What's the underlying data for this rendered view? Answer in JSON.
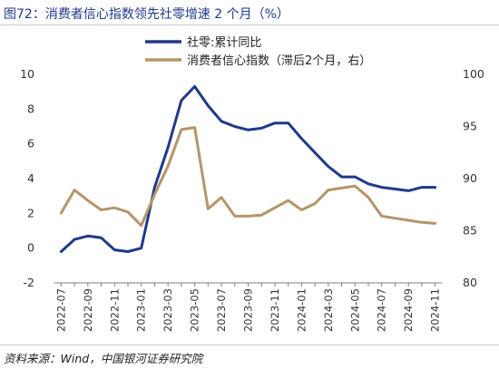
{
  "header": {
    "title": "图72：消费者信心指数领先社零增速 2 个月（%）"
  },
  "footer": {
    "source": "资料来源：Wind，中国银河证券研究院"
  },
  "chart_data": {
    "type": "line",
    "x": [
      "2022-07",
      "2022-08",
      "2022-09",
      "2022-10",
      "2022-11",
      "2022-12",
      "2023-01",
      "2023-02",
      "2023-03",
      "2023-04",
      "2023-05",
      "2023-06",
      "2023-07",
      "2023-08",
      "2023-09",
      "2023-10",
      "2023-11",
      "2023-12",
      "2024-01",
      "2024-02",
      "2024-03",
      "2024-04",
      "2024-05",
      "2024-06",
      "2024-07",
      "2024-08",
      "2024-09",
      "2024-10",
      "2024-11"
    ],
    "xtick_labels": [
      "2022-07",
      "2022-09",
      "2022-11",
      "2023-01",
      "2023-03",
      "2023-05",
      "2023-07",
      "2023-09",
      "2023-11",
      "2024-01",
      "2024-03",
      "2024-05",
      "2024-07",
      "2024-09",
      "2024-11"
    ],
    "y_left": {
      "min": -2,
      "max": 10,
      "ticks": [
        -2,
        0,
        2,
        4,
        6,
        8,
        10
      ]
    },
    "y_right": {
      "min": 80,
      "max": 100,
      "ticks": [
        80,
        85,
        90,
        95,
        100
      ]
    },
    "legend": {
      "placement": "top-center"
    },
    "grid": false,
    "series": [
      {
        "name": "社零:累计同比",
        "axis": "left",
        "color": "#1f3a8a",
        "values": [
          -0.2,
          0.5,
          0.7,
          0.6,
          -0.1,
          -0.2,
          0.0,
          3.5,
          5.8,
          8.5,
          9.3,
          8.2,
          7.3,
          7.0,
          6.8,
          6.9,
          7.2,
          7.2,
          6.3,
          5.5,
          4.7,
          4.1,
          4.1,
          3.7,
          3.5,
          3.4,
          3.3,
          3.5,
          3.5
        ]
      },
      {
        "name": "消费者信心指数（滞后2个月，右）",
        "axis": "right",
        "color": "#b5956a",
        "values": [
          86.7,
          88.9,
          87.9,
          87.0,
          87.2,
          86.8,
          85.5,
          88.5,
          91.2,
          94.7,
          94.9,
          87.1,
          88.2,
          86.4,
          86.4,
          86.5,
          87.2,
          87.9,
          87.0,
          87.6,
          88.9,
          89.1,
          89.3,
          88.2,
          86.4,
          86.2,
          86.0,
          85.8,
          85.7
        ]
      }
    ]
  }
}
